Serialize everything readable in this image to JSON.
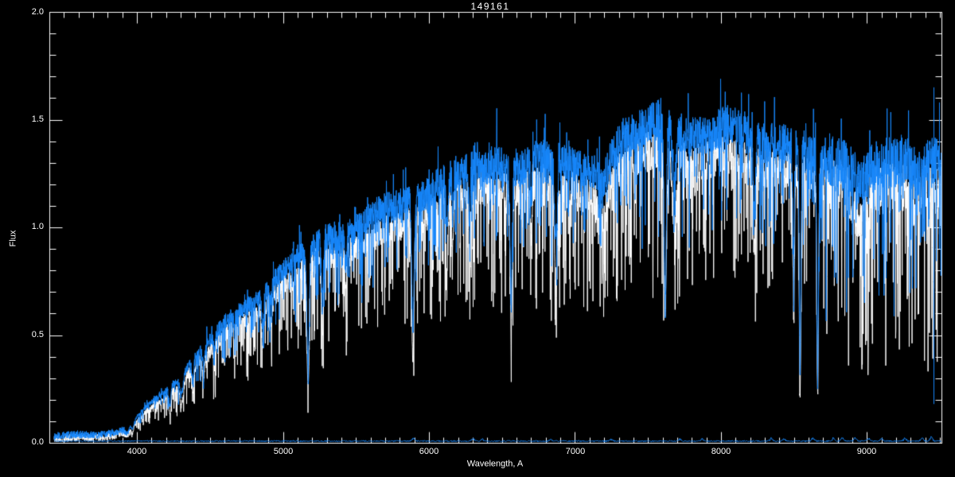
{
  "chart_data": {
    "type": "line",
    "title": "149161",
    "xlabel": "Wavelength, A",
    "ylabel": "Flux",
    "xlim": [
      3400,
      9510
    ],
    "ylim": [
      0.0,
      2.0
    ],
    "xticks": [
      4000,
      5000,
      6000,
      7000,
      8000,
      9000
    ],
    "xtick_labels": [
      "4000",
      "5000",
      "6000",
      "7000",
      "8000",
      "9000"
    ],
    "yticks": [
      0.0,
      0.5,
      1.0,
      1.5,
      2.0
    ],
    "ytick_labels_top_down": [
      "2.0",
      "1.5",
      "1.0",
      "0.5",
      "0.0"
    ],
    "x_minor_step": 100,
    "y_minor_step": 0.1,
    "grid": false,
    "legend_position": "none",
    "background_color": "#000000",
    "axis_color": "#ffffff",
    "series": [
      {
        "name": "object-spectrum",
        "color": "#1787fb",
        "description": "noisy blue stellar spectrum drawn on top"
      },
      {
        "name": "comparison-spectrum",
        "color": "#ffffff",
        "description": "white spectrum drawn beneath, slightly lower flux"
      },
      {
        "name": "sky-baseline",
        "color": "#1787fb",
        "description": "near-zero flat baseline across full wavelength range",
        "level": 0.008
      }
    ],
    "data_range": [
      3433,
      9508
    ],
    "continuum_anchors": [
      [
        3433,
        0.03
      ],
      [
        3520,
        0.035
      ],
      [
        3600,
        0.04
      ],
      [
        3700,
        0.035
      ],
      [
        3780,
        0.04
      ],
      [
        3860,
        0.05
      ],
      [
        3920,
        0.06
      ],
      [
        3960,
        0.09
      ],
      [
        4000,
        0.12
      ],
      [
        4060,
        0.17
      ],
      [
        4120,
        0.2
      ],
      [
        4180,
        0.23
      ],
      [
        4240,
        0.27
      ],
      [
        4300,
        0.3
      ],
      [
        4360,
        0.37
      ],
      [
        4420,
        0.42
      ],
      [
        4480,
        0.46
      ],
      [
        4540,
        0.51
      ],
      [
        4600,
        0.56
      ],
      [
        4660,
        0.6
      ],
      [
        4720,
        0.62
      ],
      [
        4780,
        0.64
      ],
      [
        4840,
        0.67
      ],
      [
        4900,
        0.72
      ],
      [
        4960,
        0.77
      ],
      [
        5020,
        0.81
      ],
      [
        5080,
        0.86
      ],
      [
        5140,
        0.88
      ],
      [
        5200,
        0.92
      ],
      [
        5260,
        0.94
      ],
      [
        5320,
        0.96
      ],
      [
        5380,
        0.95
      ],
      [
        5440,
        0.97
      ],
      [
        5500,
        1.0
      ],
      [
        5580,
        1.04
      ],
      [
        5660,
        1.08
      ],
      [
        5740,
        1.1
      ],
      [
        5820,
        1.11
      ],
      [
        5900,
        1.13
      ],
      [
        5980,
        1.15
      ],
      [
        6060,
        1.2
      ],
      [
        6140,
        1.24
      ],
      [
        6220,
        1.27
      ],
      [
        6300,
        1.3
      ],
      [
        6380,
        1.28
      ],
      [
        6460,
        1.3
      ],
      [
        6540,
        1.28
      ],
      [
        6620,
        1.27
      ],
      [
        6700,
        1.31
      ],
      [
        6780,
        1.33
      ],
      [
        6860,
        1.29
      ],
      [
        6940,
        1.3
      ],
      [
        7020,
        1.28
      ],
      [
        7100,
        1.26
      ],
      [
        7180,
        1.3
      ],
      [
        7260,
        1.36
      ],
      [
        7340,
        1.42
      ],
      [
        7420,
        1.45
      ],
      [
        7500,
        1.48
      ],
      [
        7580,
        1.51
      ],
      [
        7640,
        1.5
      ],
      [
        7720,
        1.44
      ],
      [
        7800,
        1.42
      ],
      [
        7880,
        1.43
      ],
      [
        7960,
        1.45
      ],
      [
        8040,
        1.47
      ],
      [
        8120,
        1.46
      ],
      [
        8200,
        1.43
      ],
      [
        8280,
        1.39
      ],
      [
        8360,
        1.4
      ],
      [
        8440,
        1.39
      ],
      [
        8520,
        1.38
      ],
      [
        8600,
        1.35
      ],
      [
        8680,
        1.33
      ],
      [
        8760,
        1.31
      ],
      [
        8840,
        1.29
      ],
      [
        8920,
        1.28
      ],
      [
        9000,
        1.27
      ],
      [
        9080,
        1.29
      ],
      [
        9160,
        1.3
      ],
      [
        9240,
        1.31
      ],
      [
        9320,
        1.31
      ],
      [
        9400,
        1.29
      ],
      [
        9508,
        1.3
      ]
    ],
    "white_scale": 0.92,
    "white_offset": -0.01,
    "absorption_lines": [
      [
        3934,
        9,
        0.4,
        0.45
      ],
      [
        3969,
        9,
        0.35,
        0.4
      ],
      [
        4226,
        7,
        0.35,
        0.42
      ],
      [
        4305,
        12,
        0.25,
        0.32
      ],
      [
        4383,
        7,
        0.25,
        0.32
      ],
      [
        4455,
        7,
        0.18,
        0.25
      ],
      [
        4530,
        6,
        0.15,
        0.2
      ],
      [
        4668,
        6,
        0.12,
        0.18
      ],
      [
        4861,
        7,
        0.22,
        0.3
      ],
      [
        4920,
        6,
        0.1,
        0.15
      ],
      [
        5172,
        8,
        0.62,
        0.68
      ],
      [
        5270,
        7,
        0.3,
        0.4
      ],
      [
        5430,
        6,
        0.15,
        0.22
      ],
      [
        5890,
        8,
        0.55,
        0.62
      ],
      [
        6122,
        7,
        0.18,
        0.28
      ],
      [
        6162,
        6,
        0.15,
        0.22
      ],
      [
        6278,
        6,
        0.2,
        0.28
      ],
      [
        6563,
        7,
        0.5,
        0.55
      ],
      [
        6700,
        6,
        0.12,
        0.2
      ],
      [
        6869,
        9,
        0.28,
        0.34
      ],
      [
        7190,
        32,
        0.08,
        0.13
      ],
      [
        7618,
        8,
        0.58,
        0.55
      ],
      [
        7680,
        14,
        0.18,
        0.24
      ],
      [
        8230,
        8,
        0.22,
        0.3
      ],
      [
        8498,
        6,
        0.38,
        0.48
      ],
      [
        8542,
        6,
        0.74,
        0.8
      ],
      [
        8662,
        6,
        0.74,
        0.8
      ],
      [
        8950,
        38,
        0.05,
        0.1
      ],
      [
        9340,
        22,
        0.05,
        0.1
      ]
    ],
    "artifact_spikes": [
      [
        9455,
        0.18,
        1.65
      ],
      [
        9492,
        0.9,
        1.58
      ]
    ],
    "sky_bumps": [
      [
        5893,
        0.012
      ],
      [
        6302,
        0.01
      ],
      [
        6365,
        0.008
      ],
      [
        6835,
        0.008
      ],
      [
        7250,
        0.008
      ],
      [
        7720,
        0.008
      ],
      [
        7870,
        0.01
      ],
      [
        8345,
        0.012
      ],
      [
        8430,
        0.01
      ],
      [
        8630,
        0.012
      ],
      [
        8770,
        0.012
      ],
      [
        8830,
        0.014
      ],
      [
        8920,
        0.014
      ],
      [
        9010,
        0.012
      ],
      [
        9100,
        0.012
      ],
      [
        9260,
        0.012
      ],
      [
        9375,
        0.014
      ],
      [
        9440,
        0.018
      ]
    ],
    "noise": {
      "seed": 13,
      "sample_step_angstrom": 1.5,
      "blue": {
        "jitter": 0.13,
        "spike_prob": 0.2,
        "spike_depth": 0.34,
        "up_prob": 0.05,
        "up_amp": 0.14
      },
      "white": {
        "jitter": 0.14,
        "spike_prob": 0.3,
        "spike_depth": 0.48,
        "up_prob": 0.03,
        "up_amp": 0.08
      },
      "red_boost_from": 8700,
      "red_boost": 1.45,
      "blue_end_abs_noise": 0.018,
      "blue_end_wavelength": 3950
    }
  }
}
